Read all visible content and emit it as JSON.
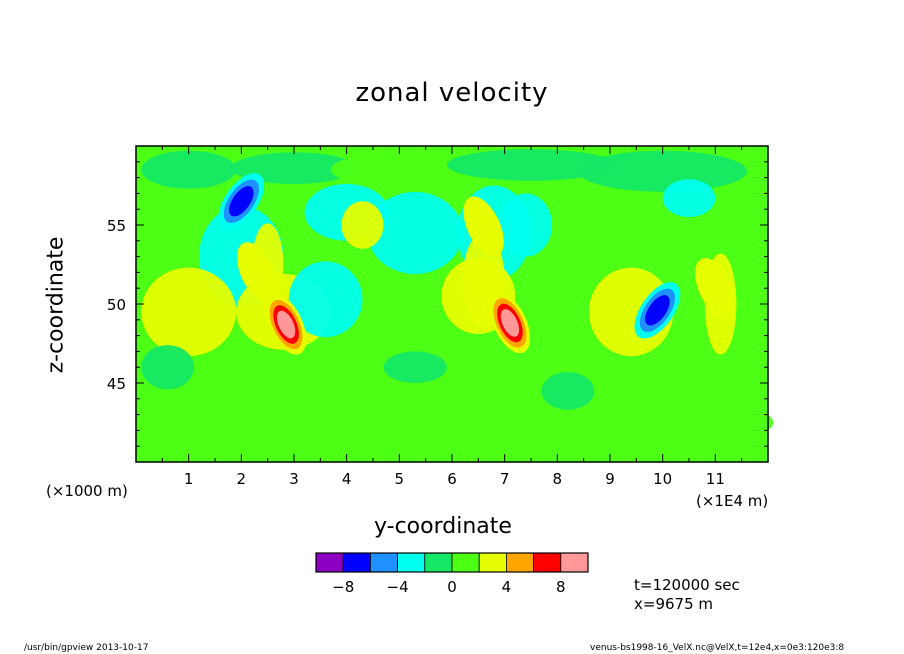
{
  "title": "zonal velocity",
  "chart_data": {
    "type": "heatmap",
    "title": "zonal velocity",
    "xlabel": "y-coordinate",
    "ylabel": "z-coordinate",
    "x_unit_left": "(×1000 m)",
    "x_unit_right": "(×1E4 m)",
    "xlim": [
      0,
      12
    ],
    "ylim": [
      40,
      60
    ],
    "xticks": [
      "1",
      "2",
      "3",
      "4",
      "5",
      "6",
      "7",
      "8",
      "9",
      "10",
      "11"
    ],
    "yticks": [
      "45",
      "50",
      "55"
    ],
    "colorbar": {
      "levels": [
        -10,
        -8,
        -6,
        -4,
        -2,
        0,
        2,
        4,
        6,
        8,
        10
      ],
      "labels": [
        "−8",
        "−4",
        "0",
        "4",
        "8"
      ],
      "colors": [
        "#8d00c2",
        "#0000ff",
        "#1e90ff",
        "#00ffee",
        "#14e864",
        "#4cff14",
        "#e6ff00",
        "#ffa500",
        "#ff0000",
        "#ff9999"
      ]
    },
    "features": [
      {
        "y": 2.0,
        "z": 56.5,
        "value": -7,
        "label": "strong negative"
      },
      {
        "y": 2.85,
        "z": 48.7,
        "value": 9,
        "label": "strong positive"
      },
      {
        "y": 7.1,
        "z": 48.8,
        "value": 9,
        "label": "strong positive"
      },
      {
        "y": 9.9,
        "z": 49.6,
        "value": -8,
        "label": "negative"
      },
      {
        "y": 2.3,
        "z": 52.0,
        "value": 3,
        "label": "positive"
      },
      {
        "y": 6.6,
        "z": 54.9,
        "value": 4,
        "label": "positive"
      },
      {
        "y": 11.0,
        "z": 51.0,
        "value": 3,
        "label": "positive"
      }
    ]
  },
  "info": {
    "time": "t=120000 sec",
    "position": "x=9675 m"
  },
  "footer": {
    "left": "/usr/bin/gpview   2013-10-17",
    "right": "venus-bs1998-16_VelX.nc@VelX,t=12e4,x=0e3:120e3:8"
  }
}
